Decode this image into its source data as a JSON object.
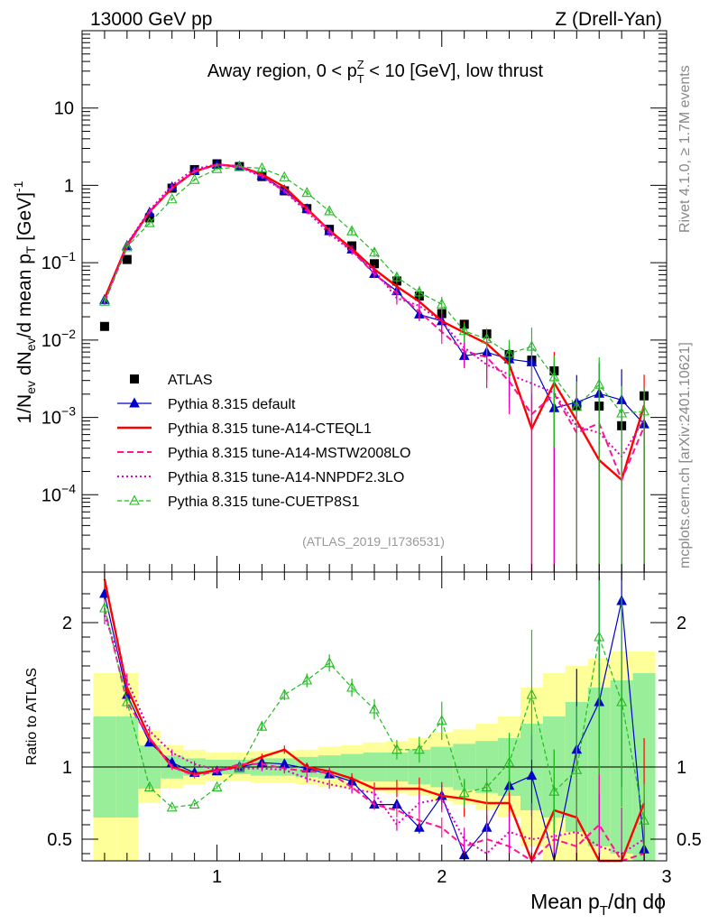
{
  "header": {
    "energy": "13000 GeV pp",
    "process": "Z (Drell-Yan)"
  },
  "side_labels": {
    "rivet": "Rivet 4.1.0, ≥ 1.7M events",
    "mcplots": "mcplots.cern.ch [arXiv:2401.10621]"
  },
  "chart_data": {
    "type": "line",
    "title_parts": [
      "Away region, 0 < p",
      "Z",
      "T",
      " < 10 [GeV], low thrust"
    ],
    "analysis_id": "(ATLAS_2019_I1736531)",
    "ylabel_parts": [
      "1/N",
      "ev",
      " dN",
      "ev",
      "/d mean p",
      "T",
      " [GeV]",
      "-1"
    ],
    "xlabel_parts": [
      "Mean p",
      "T",
      "/dη dϕ"
    ],
    "ratio_ylabel": "Ratio to ATLAS",
    "x_range": [
      0.4,
      3.0
    ],
    "y_range_log": [
      1e-05,
      100
    ],
    "ratio_range": [
      0.35,
      2.35
    ],
    "x_ticks": [
      {
        "v": 1,
        "label": "1"
      },
      {
        "v": 2,
        "label": "2"
      },
      {
        "v": 3,
        "label": "3"
      }
    ],
    "y_ticks": [
      {
        "v": 10,
        "base": "10",
        "exp": ""
      },
      {
        "v": 1,
        "base": "1",
        "exp": ""
      },
      {
        "v": 0.1,
        "base": "10",
        "exp": "−1"
      },
      {
        "v": 0.01,
        "base": "10",
        "exp": "−2"
      },
      {
        "v": 0.001,
        "base": "10",
        "exp": "−3"
      },
      {
        "v": 0.0001,
        "base": "10",
        "exp": "−4"
      }
    ],
    "ratio_ticks": [
      {
        "v": 0.5,
        "label": "0.5"
      },
      {
        "v": 1,
        "label": "1"
      },
      {
        "v": 2,
        "label": "2"
      }
    ],
    "x": [
      0.5,
      0.6,
      0.7,
      0.8,
      0.9,
      1.0,
      1.1,
      1.2,
      1.3,
      1.4,
      1.5,
      1.6,
      1.7,
      1.8,
      1.9,
      2.0,
      2.1,
      2.2,
      2.3,
      2.4,
      2.5,
      2.6,
      2.7,
      2.8,
      2.9
    ],
    "data": [
      0.015,
      0.11,
      0.38,
      0.92,
      1.6,
      1.9,
      1.75,
      1.3,
      0.85,
      0.5,
      0.27,
      0.165,
      0.097,
      0.058,
      0.037,
      0.022,
      0.016,
      0.012,
      0.0065,
      0.0055,
      0.004,
      0.0014,
      0.0014,
      0.00078,
      0.0019
    ],
    "band_inner": [
      0.35,
      0.35,
      0.15,
      0.08,
      0.06,
      0.05,
      0.05,
      0.06,
      0.06,
      0.07,
      0.08,
      0.09,
      0.1,
      0.1,
      0.12,
      0.14,
      0.16,
      0.18,
      0.2,
      0.3,
      0.35,
      0.45,
      0.55,
      0.6,
      0.65
    ],
    "band_outer": [
      0.65,
      0.65,
      0.25,
      0.15,
      0.12,
      0.1,
      0.1,
      0.11,
      0.11,
      0.12,
      0.14,
      0.15,
      0.17,
      0.18,
      0.2,
      0.24,
      0.26,
      0.3,
      0.35,
      0.55,
      0.65,
      0.7,
      0.75,
      0.8,
      0.8
    ],
    "series": [
      {
        "name": "ATLAS",
        "style": "data"
      },
      {
        "name": "Pythia 8.315 default",
        "color": "#0000cc",
        "dash": "",
        "width": 1.2,
        "marker": "tri",
        "ratio": [
          2.2,
          1.5,
          1.17,
          1.03,
          0.96,
          0.97,
          1.0,
          1.03,
          1.02,
          0.99,
          0.95,
          0.9,
          0.74,
          0.74,
          0.58,
          0.8,
          0.39,
          0.58,
          0.87,
          0.94,
          0.33,
          1.12,
          1.45,
          2.15,
          0.43
        ],
        "err": [
          0.02,
          0.02,
          0.02,
          0.015,
          0.015,
          0.015,
          0.015,
          0.015,
          0.02,
          0.02,
          0.025,
          0.03,
          0.04,
          0.05,
          0.07,
          0.09,
          0.12,
          0.15,
          0.2,
          0.3,
          0.35,
          0.5,
          0.6,
          0.6,
          0.5
        ]
      },
      {
        "name": "Pythia 8.315 tune-A14-CTEQL1",
        "color": "#ff0000",
        "dash": "",
        "width": 2.4,
        "marker": "",
        "ratio": [
          2.3,
          1.55,
          1.2,
          1.0,
          0.95,
          0.98,
          1.0,
          1.07,
          1.12,
          1.0,
          0.97,
          0.92,
          0.85,
          0.85,
          0.85,
          0.8,
          0.78,
          0.75,
          0.75,
          0.13,
          0.7,
          0.65,
          0.2,
          0.2,
          0.75
        ],
        "err": [
          0.03,
          0.03,
          0.025,
          0.02,
          0.02,
          0.02,
          0.02,
          0.02,
          0.025,
          0.03,
          0.035,
          0.04,
          0.05,
          0.07,
          0.09,
          0.12,
          0.16,
          0.2,
          0.25,
          0.5,
          0.6,
          0.7,
          0.8,
          0.8,
          0.6
        ]
      },
      {
        "name": "Pythia 8.315 tune-A14-MSTW2008LO",
        "color": "#ff1493",
        "dash": "7,4",
        "width": 2.0,
        "marker": "",
        "ratio": [
          2.1,
          1.45,
          1.2,
          1.0,
          0.94,
          0.97,
          1.02,
          1.02,
          0.99,
          0.97,
          0.96,
          0.86,
          0.74,
          0.7,
          0.63,
          0.58,
          0.45,
          0.5,
          0.45,
          0.2,
          0.5,
          0.45,
          0.6,
          0.2,
          0.4
        ],
        "err": [
          0.03,
          0.03,
          0.025,
          0.02,
          0.02,
          0.02,
          0.02,
          0.02,
          0.025,
          0.03,
          0.035,
          0.04,
          0.05,
          0.07,
          0.09,
          0.12,
          0.16,
          0.2,
          0.25,
          0.5,
          0.6,
          0.7,
          0.8,
          0.8,
          0.6
        ]
      },
      {
        "name": "Pythia 8.315 tune-A14-NNPDF2.3LO",
        "color": "#e000c0",
        "dash": "2,3",
        "width": 2.0,
        "marker": "",
        "ratio": [
          2.05,
          1.6,
          1.25,
          1.1,
          1.02,
          0.98,
          0.99,
          0.99,
          0.98,
          0.92,
          0.88,
          0.85,
          0.82,
          0.6,
          0.75,
          0.78,
          0.5,
          0.4,
          0.55,
          0.5,
          0.52,
          0.55,
          0.45,
          0.4,
          0.5
        ],
        "err": [
          0.03,
          0.03,
          0.025,
          0.02,
          0.02,
          0.02,
          0.02,
          0.02,
          0.025,
          0.03,
          0.035,
          0.04,
          0.05,
          0.07,
          0.09,
          0.12,
          0.16,
          0.2,
          0.25,
          0.5,
          0.6,
          0.7,
          0.8,
          0.8,
          0.6
        ]
      },
      {
        "name": "Pythia 8.315 tune-CUETP8S1",
        "color": "#22bb22",
        "dash": "5,3",
        "width": 1.2,
        "marker": "otri",
        "ratio": [
          2.1,
          1.45,
          0.86,
          0.72,
          0.74,
          0.86,
          0.99,
          1.28,
          1.5,
          1.6,
          1.72,
          1.55,
          1.4,
          1.12,
          1.12,
          1.32,
          0.82,
          0.86,
          1.03,
          1.5,
          0.83,
          0.98,
          1.9,
          1.45,
          0.63
        ],
        "err": [
          0.02,
          0.02,
          0.02,
          0.015,
          0.015,
          0.015,
          0.015,
          0.02,
          0.025,
          0.03,
          0.035,
          0.04,
          0.05,
          0.06,
          0.08,
          0.1,
          0.12,
          0.15,
          0.2,
          0.3,
          0.35,
          0.45,
          0.5,
          0.5,
          0.4
        ]
      }
    ]
  }
}
